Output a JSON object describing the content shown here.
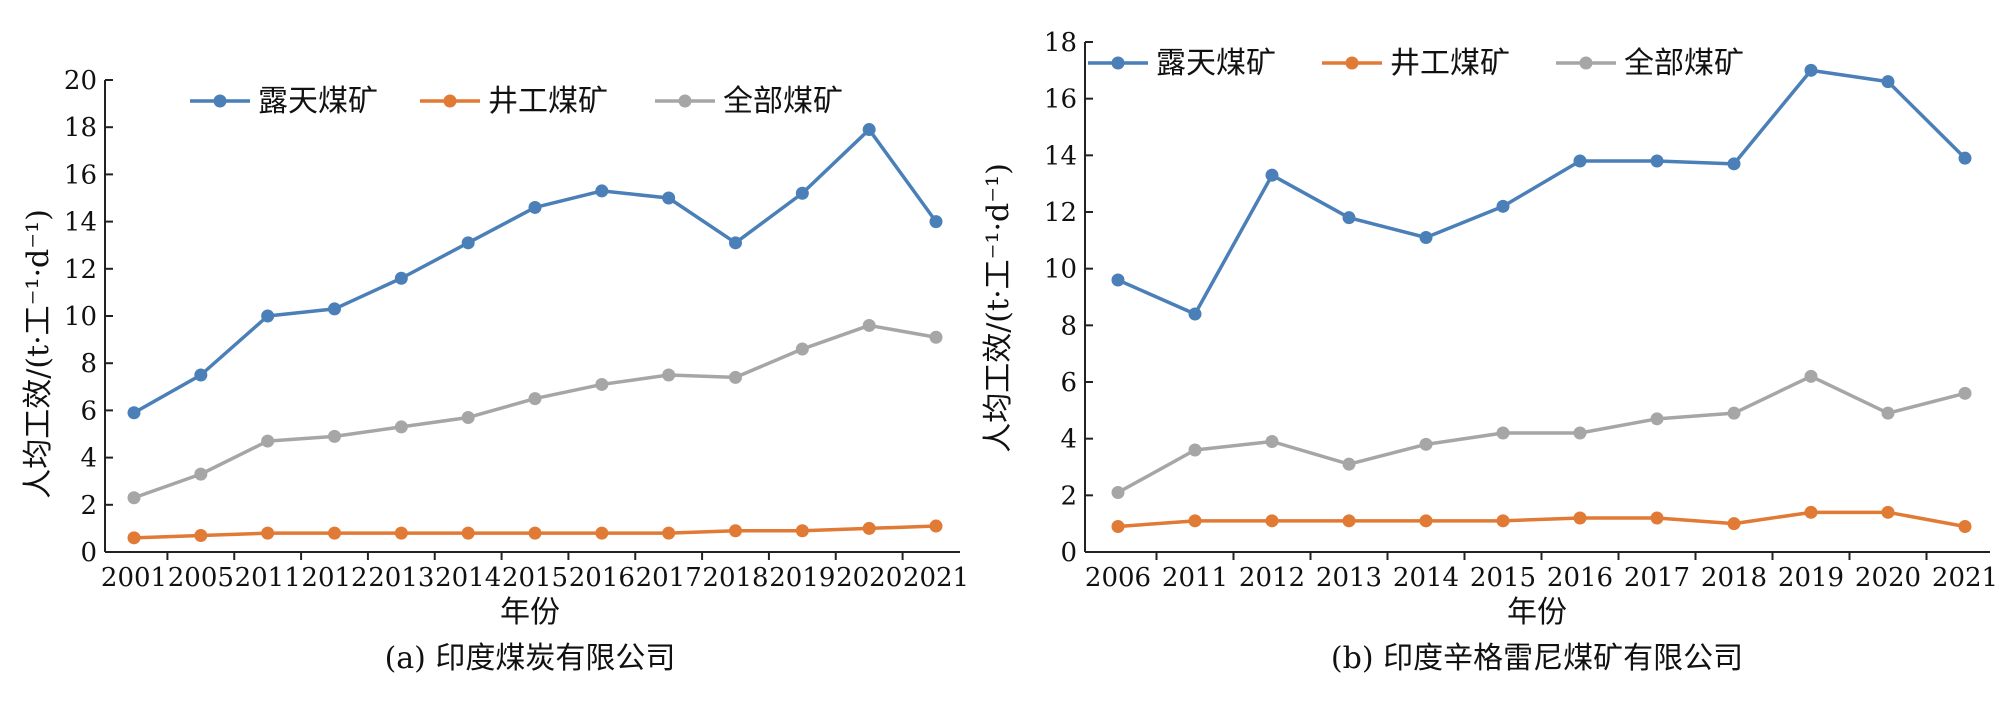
{
  "colors": {
    "open_pit": "#4a7fb8",
    "underground": "#e07a35",
    "all": "#a6a6a6"
  },
  "chart_data": [
    {
      "type": "line",
      "caption": "(a) 印度煤炭有限公司",
      "xlabel": "年份",
      "ylabel": "人均工效/(t·工⁻¹·d⁻¹)",
      "ylim": [
        0,
        20
      ],
      "yticks": [
        0,
        2,
        4,
        6,
        8,
        10,
        12,
        14,
        16,
        18,
        20
      ],
      "categories": [
        "2001",
        "2005",
        "2011",
        "2012",
        "2013",
        "2014",
        "2015",
        "2016",
        "2017",
        "2018",
        "2019",
        "2020",
        "2021"
      ],
      "legend_position": "top-left",
      "series": [
        {
          "name": "露天煤矿",
          "color_key": "open_pit",
          "values": [
            5.9,
            7.5,
            10.0,
            10.3,
            11.6,
            13.1,
            14.6,
            15.3,
            15.0,
            13.1,
            15.2,
            17.9,
            14.0
          ]
        },
        {
          "name": "井工煤矿",
          "color_key": "underground",
          "values": [
            0.6,
            0.7,
            0.8,
            0.8,
            0.8,
            0.8,
            0.8,
            0.8,
            0.8,
            0.9,
            0.9,
            1.0,
            1.1
          ]
        },
        {
          "name": "全部煤矿",
          "color_key": "all",
          "values": [
            2.3,
            3.3,
            4.7,
            4.9,
            5.3,
            5.7,
            6.5,
            7.1,
            7.5,
            7.4,
            8.6,
            9.6,
            9.1
          ]
        }
      ]
    },
    {
      "type": "line",
      "caption": "(b) 印度辛格雷尼煤矿有限公司",
      "xlabel": "年份",
      "ylabel": "人均工效/(t·工⁻¹·d⁻¹)",
      "ylim": [
        0,
        18
      ],
      "yticks": [
        0,
        2,
        4,
        6,
        8,
        10,
        12,
        14,
        16,
        18
      ],
      "categories": [
        "2006",
        "2011",
        "2012",
        "2013",
        "2014",
        "2015",
        "2016",
        "2017",
        "2018",
        "2019",
        "2020",
        "2021"
      ],
      "legend_position": "top",
      "series": [
        {
          "name": "露天煤矿",
          "color_key": "open_pit",
          "values": [
            9.6,
            8.4,
            13.3,
            11.8,
            11.1,
            12.2,
            13.8,
            13.8,
            13.7,
            17.0,
            16.6,
            13.9
          ]
        },
        {
          "name": "井工煤矿",
          "color_key": "underground",
          "values": [
            0.9,
            1.1,
            1.1,
            1.1,
            1.1,
            1.1,
            1.2,
            1.2,
            1.0,
            1.4,
            1.4,
            0.9
          ]
        },
        {
          "name": "全部煤矿",
          "color_key": "all",
          "values": [
            2.1,
            3.6,
            3.9,
            3.1,
            3.8,
            4.2,
            4.2,
            4.7,
            4.9,
            6.2,
            4.9,
            5.6
          ]
        }
      ]
    }
  ]
}
